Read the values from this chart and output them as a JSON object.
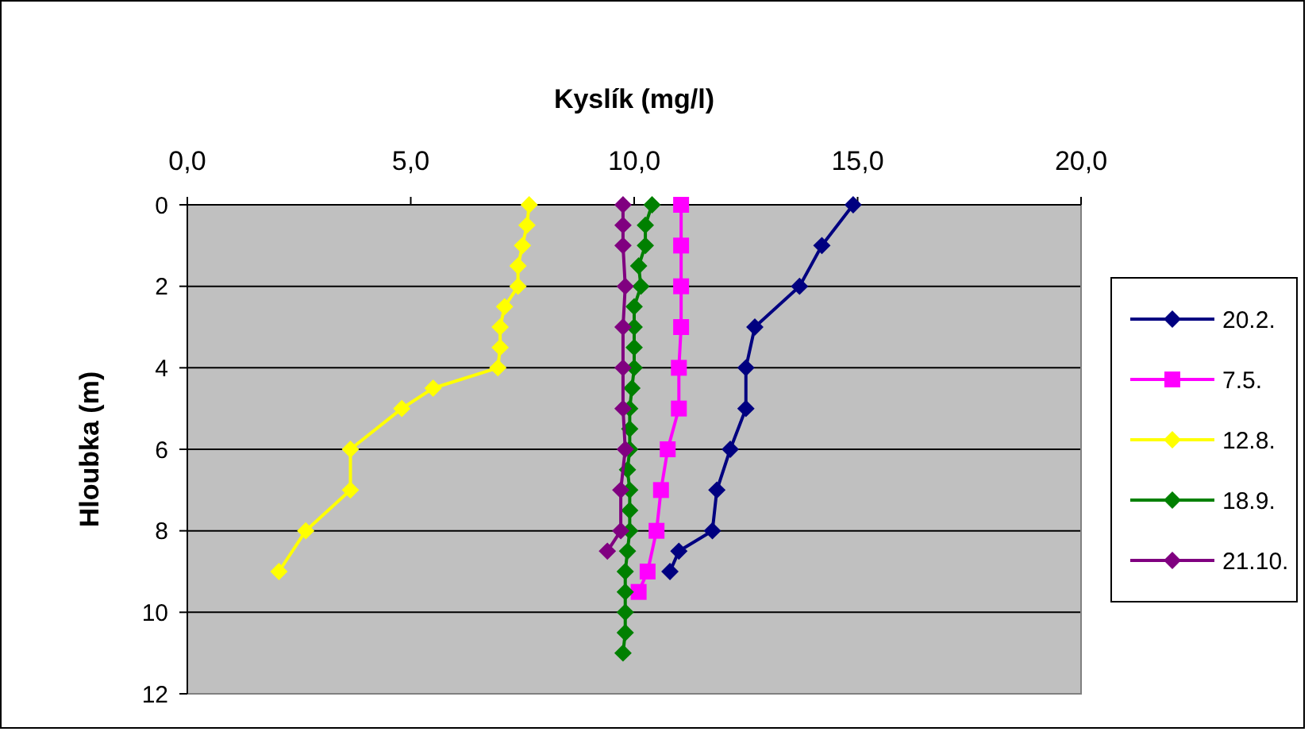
{
  "chart_data": {
    "type": "line",
    "xlabel": "Kyslík (mg/l)",
    "ylabel": "Hloubka (m)",
    "xlim": [
      0,
      20
    ],
    "xticks": [
      {
        "value": 0,
        "label": "0,0"
      },
      {
        "value": 5,
        "label": "5,0"
      },
      {
        "value": 10,
        "label": "10,0"
      },
      {
        "value": 15,
        "label": "15,0"
      },
      {
        "value": 20,
        "label": "20,0"
      }
    ],
    "ylim": [
      12,
      0
    ],
    "yticks": [
      0,
      2,
      4,
      6,
      8,
      10,
      12
    ],
    "grid": "y",
    "legend": "right",
    "marker": "diamond",
    "line_style": "solid",
    "series": [
      {
        "name": "20.2.",
        "color": "#000080",
        "x": [
          14.9,
          14.2,
          13.7,
          12.7,
          12.5,
          12.5,
          12.15,
          11.85,
          11.75,
          11.0,
          10.8
        ],
        "values": [
          0,
          1,
          2,
          3,
          4,
          5,
          6,
          7,
          8,
          8.5,
          9
        ]
      },
      {
        "name": "7.5.",
        "color": "#ff00ff",
        "marker": "square",
        "x": [
          11.05,
          11.05,
          11.05,
          11.05,
          11.0,
          11.0,
          10.75,
          10.6,
          10.5,
          10.3,
          10.1
        ],
        "values": [
          0,
          1,
          2,
          3,
          4,
          5,
          6,
          7,
          8,
          9,
          9.5
        ]
      },
      {
        "name": "12.8.",
        "color": "#ffff00",
        "x": [
          7.65,
          7.6,
          7.5,
          7.4,
          7.4,
          7.1,
          7.0,
          7.0,
          6.95,
          5.5,
          4.8,
          3.65,
          3.65,
          2.65,
          2.05
        ],
        "values": [
          0,
          0.5,
          1,
          1.5,
          2,
          2.5,
          3,
          3.5,
          4,
          4.5,
          5,
          6,
          7,
          8,
          9
        ]
      },
      {
        "name": "18.9.",
        "color": "#008000",
        "x": [
          10.4,
          10.25,
          10.25,
          10.1,
          10.15,
          10.0,
          10.0,
          10.0,
          10.0,
          9.95,
          9.9,
          9.9,
          9.9,
          9.85,
          9.9,
          9.9,
          9.9,
          9.85,
          9.8,
          9.8,
          9.8,
          9.8,
          9.75
        ],
        "values": [
          0,
          0.5,
          1,
          1.5,
          2,
          2.5,
          3,
          3.5,
          4,
          4.5,
          5,
          5.5,
          6,
          6.5,
          7,
          7.5,
          8,
          8.5,
          9,
          9.5,
          10,
          10.5,
          11
        ]
      },
      {
        "name": "21.10.",
        "color": "#800080",
        "x": [
          9.75,
          9.75,
          9.75,
          9.8,
          9.75,
          9.75,
          9.75,
          9.8,
          9.7,
          9.7,
          9.4
        ],
        "values": [
          0,
          0.5,
          1,
          2,
          3,
          4,
          5,
          6,
          7,
          8,
          8.5
        ]
      }
    ]
  }
}
